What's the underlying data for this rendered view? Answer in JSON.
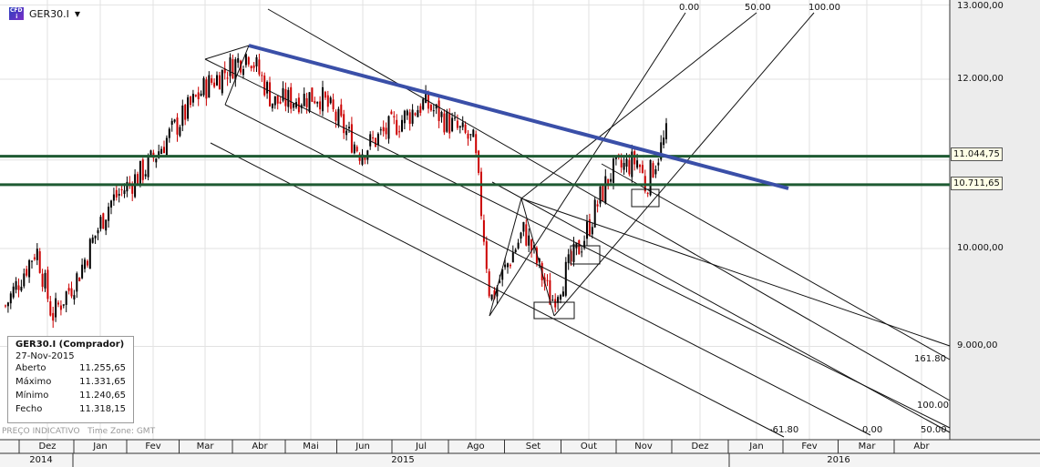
{
  "symbol": {
    "name": "GER30.I",
    "icon": "cfd-icon",
    "dropdown_icon": "caret-down-icon"
  },
  "info_box": {
    "title": "GER30.I (Comprador)",
    "date": "27-Nov-2015",
    "rows": [
      {
        "label": "Aberto",
        "value": "11.255,65"
      },
      {
        "label": "Máximo",
        "value": "11.331,65"
      },
      {
        "label": "Mínimo",
        "value": "11.240,65"
      },
      {
        "label": "Fecho",
        "value": "11.318,15"
      }
    ]
  },
  "footer": {
    "indicative": "PREÇO INDICATIVO",
    "timezone": "Time Zone: GMT"
  },
  "colors": {
    "up": "#000000",
    "down": "#cc0000",
    "trend": "#3a4fa8",
    "level": "#1e5a32"
  },
  "chart_data": {
    "type": "candlestick",
    "scale": "log",
    "y_ticks": [
      "13.000,00",
      "12.000,00",
      "10.000,00",
      "9.000,00"
    ],
    "y_tick_values": [
      13000,
      12000,
      10000,
      9000
    ],
    "x_months": [
      "Dez",
      "Jan",
      "Fev",
      "Mar",
      "Abr",
      "Mai",
      "Jun",
      "Jul",
      "Ago",
      "Set",
      "Out",
      "Nov",
      "Dez",
      "Jan",
      "Fev",
      "Mar",
      "Abr"
    ],
    "x_years": [
      "2014",
      "2015",
      "2016"
    ],
    "levels": [
      {
        "label": "11.044,75",
        "value": 11044.75
      },
      {
        "label": "10.711,65",
        "value": 10711.65
      }
    ],
    "fib_labels_top": [
      "0.00",
      "50.00",
      "100.00"
    ],
    "fib_labels_bottom": [
      "-61.80",
      "0.00",
      "50.00",
      "100.00",
      "161.80"
    ],
    "price_path_monthly_approx": [
      {
        "t": "Nov-2014",
        "p": 9400
      },
      {
        "t": "Dez-2014",
        "p": 10000
      },
      {
        "t": "Dez-2014b",
        "p": 9300
      },
      {
        "t": "Jan-2015",
        "p": 9700
      },
      {
        "t": "Jan-2015b",
        "p": 10500
      },
      {
        "t": "Fev-2015",
        "p": 10900
      },
      {
        "t": "Mar-2015",
        "p": 11900
      },
      {
        "t": "Abr-2015",
        "p": 12350
      },
      {
        "t": "Abr-2015b",
        "p": 11700
      },
      {
        "t": "Mai-2015",
        "p": 11800
      },
      {
        "t": "Jun-2015",
        "p": 11100
      },
      {
        "t": "Jul-2015",
        "p": 11700
      },
      {
        "t": "Ago-2015",
        "p": 11200
      },
      {
        "t": "Ago-2015b",
        "p": 9450
      },
      {
        "t": "Set-2015",
        "p": 10200
      },
      {
        "t": "Set-2015b",
        "p": 9450
      },
      {
        "t": "Out-2015",
        "p": 10100
      },
      {
        "t": "Out-2015b",
        "p": 10850
      },
      {
        "t": "Nov-2015",
        "p": 11000
      },
      {
        "t": "Nov-2015b",
        "p": 10700
      },
      {
        "t": "Nov-2015c",
        "p": 11318.15
      }
    ]
  }
}
